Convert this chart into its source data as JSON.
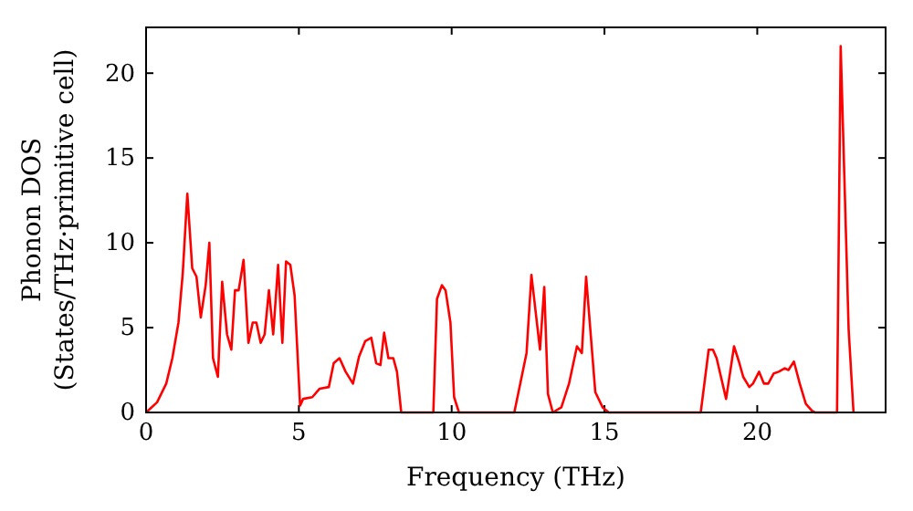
{
  "chart_data": {
    "type": "line",
    "xlabel": "Frequency (THz)",
    "ylabel": "Phonon DOS\n(States/THz·primitive cell)",
    "xlim": [
      0,
      24.2
    ],
    "ylim": [
      0,
      22.7
    ],
    "xticks": [
      0,
      5,
      10,
      15,
      20
    ],
    "yticks": [
      0,
      5,
      10,
      15,
      20
    ],
    "grid": false,
    "marker": "none",
    "line_style": "solid",
    "series": [
      {
        "color": "#ff0000",
        "x": [
          0,
          0.36,
          0.66,
          0.86,
          1.06,
          1.2,
          1.35,
          1.51,
          1.65,
          1.79,
          1.95,
          2.07,
          2.19,
          2.35,
          2.49,
          2.65,
          2.79,
          2.91,
          3.03,
          3.19,
          3.35,
          3.49,
          3.61,
          3.75,
          3.88,
          4.02,
          4.16,
          4.32,
          4.46,
          4.58,
          4.72,
          4.86,
          5.04,
          5.14,
          5.44,
          5.68,
          5.98,
          6.14,
          6.33,
          6.53,
          6.77,
          6.97,
          7.17,
          7.37,
          7.53,
          7.67,
          7.79,
          7.93,
          8.09,
          8.21,
          8.35,
          9.4,
          9.52,
          9.68,
          9.8,
          9.96,
          10.08,
          10.24,
          12.05,
          12.45,
          12.61,
          12.89,
          13.03,
          13.15,
          13.31,
          13.59,
          13.84,
          14.1,
          14.26,
          14.4,
          14.7,
          14.94,
          15.14,
          18.15,
          18.41,
          18.55,
          18.67,
          18.98,
          19.24,
          19.4,
          19.54,
          19.74,
          19.86,
          20.06,
          20.22,
          20.36,
          20.54,
          20.7,
          20.9,
          21.02,
          21.2,
          21.39,
          21.59,
          21.79,
          21.89,
          22.61,
          22.73,
          22.99,
          23.15
        ],
        "values": [
          0,
          0.6,
          1.7,
          3.2,
          5.3,
          8.2,
          12.9,
          8.5,
          8,
          5.6,
          7.5,
          10,
          3.2,
          2.1,
          7.7,
          4.6,
          3.7,
          7.2,
          7.2,
          9,
          4.1,
          5.3,
          5.3,
          4.1,
          4.6,
          7.2,
          4.6,
          8.7,
          4.1,
          8.9,
          8.7,
          6.9,
          0.4,
          0.8,
          0.9,
          1.4,
          1.5,
          2.9,
          3.2,
          2.4,
          1.7,
          3.3,
          4.2,
          4.4,
          2.9,
          2.8,
          4.7,
          3.2,
          3.2,
          2.4,
          0,
          0,
          6.7,
          7.5,
          7.2,
          5.3,
          0.9,
          0,
          0,
          3.5,
          8.1,
          3.7,
          7.4,
          1.1,
          0,
          0.3,
          1.7,
          3.9,
          3.5,
          8,
          1.2,
          0.3,
          0,
          0,
          3.7,
          3.7,
          3.2,
          0.8,
          3.9,
          3,
          2.1,
          1.5,
          1.7,
          2.4,
          1.7,
          1.7,
          2.3,
          2.4,
          2.6,
          2.5,
          3,
          1.7,
          0.5,
          0.1,
          0,
          0,
          21.6,
          4.9,
          0
        ]
      }
    ]
  }
}
